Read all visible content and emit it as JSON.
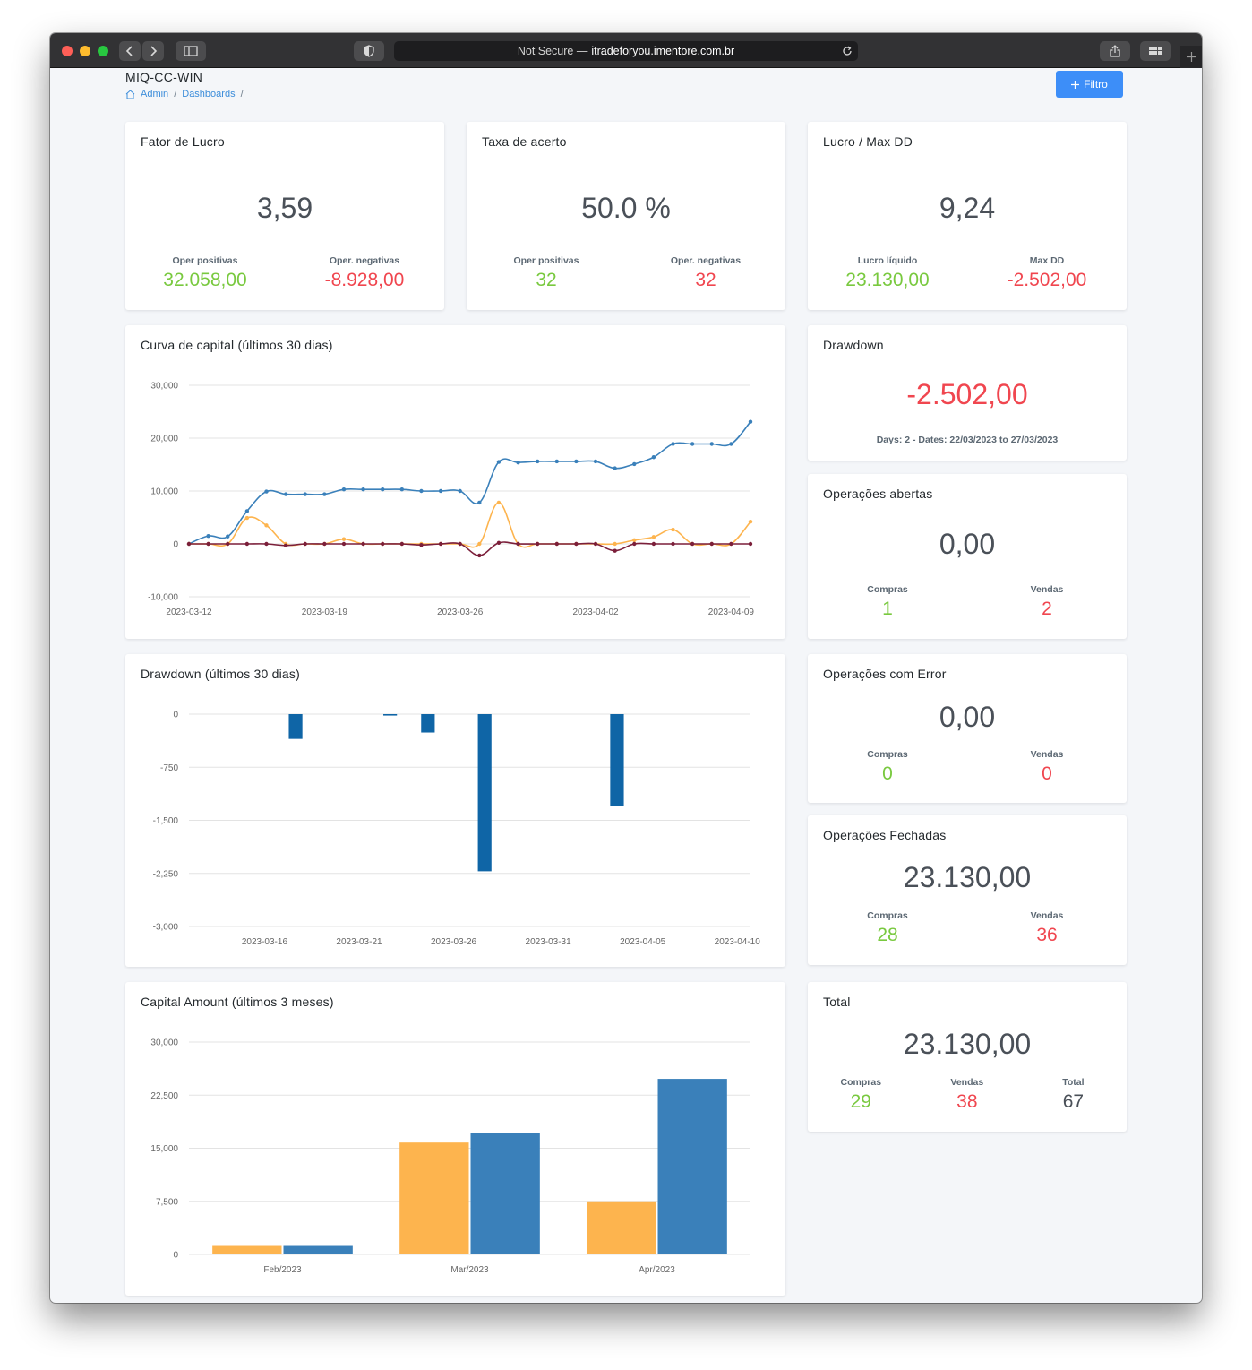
{
  "browser": {
    "url_prefix": "Not Secure —",
    "url_host": "itradeforyou.imentore.com.br"
  },
  "header": {
    "title": "MIQ-CC-WIN",
    "breadcrumb": [
      "Admin",
      "Dashboards"
    ],
    "breadcrumb_sep": "/",
    "filter_button": "Filtro"
  },
  "cards": {
    "fator_lucro": {
      "title": "Fator de Lucro",
      "value": "3,59",
      "left_label": "Oper positivas",
      "left_value": "32.058,00",
      "right_label": "Oper. negativas",
      "right_value": "-8.928,00"
    },
    "taxa_acerto": {
      "title": "Taxa de acerto",
      "value": "50.0 %",
      "left_label": "Oper positivas",
      "left_value": "32",
      "right_label": "Oper. negativas",
      "right_value": "32"
    },
    "lucro_maxdd": {
      "title": "Lucro / Max DD",
      "value": "9,24",
      "left_label": "Lucro líquido",
      "left_value": "23.130,00",
      "right_label": "Max DD",
      "right_value": "-2.502,00"
    },
    "drawdown": {
      "title": "Drawdown",
      "value": "-2.502,00",
      "detail": "Days: 2 - Dates: 22/03/2023 to 27/03/2023"
    },
    "abertas": {
      "title": "Operações abertas",
      "value": "0,00",
      "left_label": "Compras",
      "left_value": "1",
      "right_label": "Vendas",
      "right_value": "2"
    },
    "error": {
      "title": "Operações com Error",
      "value": "0,00",
      "left_label": "Compras",
      "left_value": "0",
      "right_label": "Vendas",
      "right_value": "0"
    },
    "fechadas": {
      "title": "Operações Fechadas",
      "value": "23.130,00",
      "left_label": "Compras",
      "left_value": "28",
      "right_label": "Vendas",
      "right_value": "36"
    },
    "total": {
      "title": "Total",
      "value": "23.130,00",
      "c1_label": "Compras",
      "c1_value": "29",
      "c2_label": "Vendas",
      "c2_value": "38",
      "c3_label": "Total",
      "c3_value": "67"
    }
  },
  "chart_titles": {
    "curva": "Curva de capital (últimos 30 dias)",
    "drawdown": "Drawdown (últimos 30 dias)",
    "capital": "Capital Amount (últimos 3 meses)"
  },
  "colors": {
    "blue": "#3a80ba",
    "orange": "#fdb44e",
    "maroon": "#7b1f3a",
    "bar_blue": "#0f65a6",
    "green": "#79c93f",
    "red": "#f0464f"
  },
  "chart_data": [
    {
      "type": "line",
      "x_start": "2023-03-12",
      "x_end": "2023-04-10",
      "xticks": [
        "2023-03-12",
        "2023-03-19",
        "2023-03-26",
        "2023-04-02",
        "2023-04-09"
      ],
      "ylim": [
        -10000,
        30000
      ],
      "yticks": [
        -10000,
        0,
        10000,
        20000,
        30000
      ],
      "ytick_labels": [
        "-10,000",
        "0",
        "10,000",
        "20,000",
        "30,000"
      ],
      "grid": true,
      "series": [
        {
          "color": "#3a80ba",
          "values": [
            0,
            1500,
            1400,
            6200,
            9900,
            9400,
            9400,
            9400,
            10300,
            10300,
            10300,
            10300,
            10000,
            10000,
            10000,
            7800,
            15500,
            15400,
            15600,
            15600,
            15600,
            15600,
            14300,
            15100,
            16400,
            18900,
            18900,
            18900,
            18900,
            23100
          ]
        },
        {
          "color": "#fdb44e",
          "values": [
            0,
            0,
            0,
            4900,
            3500,
            0,
            0,
            0,
            900,
            0,
            0,
            0,
            0,
            0,
            0,
            0,
            7800,
            0,
            0,
            0,
            0,
            0,
            0,
            700,
            1300,
            2700,
            0,
            0,
            0,
            4200
          ]
        },
        {
          "color": "#7b1f3a",
          "values": [
            0,
            0,
            0,
            0,
            0,
            -300,
            0,
            0,
            0,
            0,
            0,
            0,
            -200,
            0,
            0,
            -2200,
            200,
            0,
            0,
            0,
            0,
            0,
            -1300,
            0,
            0,
            0,
            0,
            0,
            0,
            0
          ]
        }
      ]
    },
    {
      "type": "bar",
      "x_start": "2023-03-12",
      "x_end": "2023-04-10",
      "xticks": [
        "2023-03-16",
        "2023-03-21",
        "2023-03-26",
        "2023-03-31",
        "2023-04-05",
        "2023-04-10"
      ],
      "ylim": [
        -3000,
        0
      ],
      "yticks": [
        0,
        -750,
        -1500,
        -2250,
        -3000
      ],
      "ytick_labels": [
        "0",
        "-750",
        "-1,500",
        "-2,250",
        "-3,000"
      ],
      "grid": true,
      "bars": [
        {
          "date": "2023-03-17",
          "value": -350
        },
        {
          "date": "2023-03-22",
          "value": -20
        },
        {
          "date": "2023-03-24",
          "value": -260
        },
        {
          "date": "2023-03-27",
          "value": -2220
        },
        {
          "date": "2023-04-03",
          "value": -1300
        }
      ]
    },
    {
      "type": "bar",
      "categories": [
        "Feb/2023",
        "Mar/2023",
        "Apr/2023"
      ],
      "ylim": [
        0,
        30000
      ],
      "yticks": [
        0,
        7500,
        15000,
        22500,
        30000
      ],
      "ytick_labels": [
        "0",
        "7,500",
        "15,000",
        "22,500",
        "30,000"
      ],
      "grid": true,
      "series": [
        {
          "color": "#fdb44e",
          "values": [
            1200,
            15800,
            7500
          ]
        },
        {
          "color": "#3a80ba",
          "values": [
            1200,
            17100,
            24800
          ]
        }
      ]
    }
  ]
}
